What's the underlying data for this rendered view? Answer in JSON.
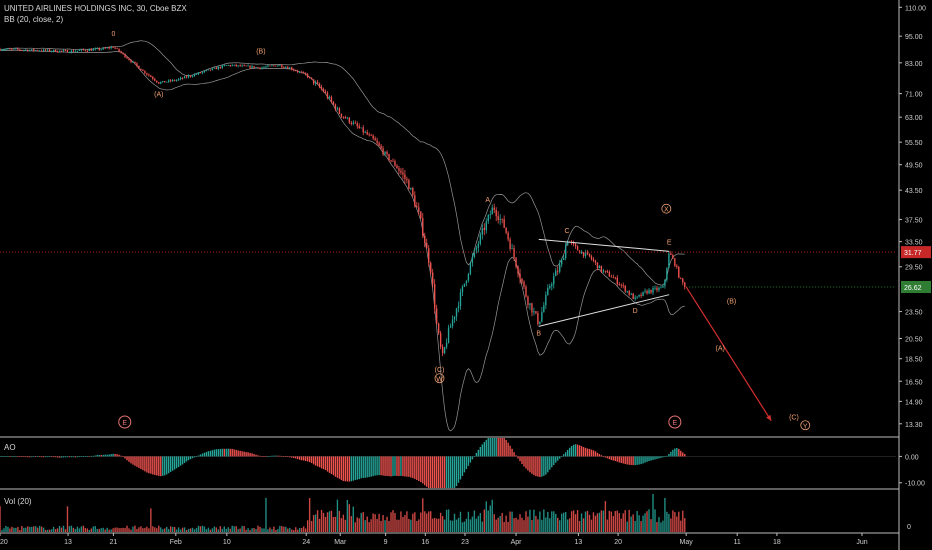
{
  "header": {
    "symbol_line": "UNITED AIRLINES HOLDINGS INC, 30, Cboe BZX",
    "indicator_line": "BB (20, close, 2)"
  },
  "panes": {
    "ao_label": "AO",
    "vol_label": "Vol (20)"
  },
  "price_badges": {
    "red_line": "31.77",
    "last_price": "26.62"
  },
  "colors": {
    "background": "#000000",
    "up": "#26a69a",
    "down": "#ef5350",
    "label": "#f0a070",
    "line": "#c8c8c8",
    "projection": "#d32f2f",
    "last_badge": "#2e7d32",
    "red_badge": "#c62828"
  },
  "chart_data": [
    {
      "type": "line",
      "title": "UNITED AIRLINES HOLDINGS INC, 30, Cboe BZX",
      "y_scale": "log",
      "ylim": [
        12.5,
        113
      ],
      "y_ticks": [
        "110.00",
        "95.00",
        "83.00",
        "71.00",
        "63.00",
        "55.50",
        "49.50",
        "43.50",
        "37.50",
        "33.50",
        "29.50",
        "23.50",
        "20.50",
        "18.50",
        "16.50",
        "14.90",
        "13.30"
      ],
      "y_tick_values": [
        110,
        95,
        83,
        71,
        63,
        55.5,
        49.5,
        43.5,
        37.5,
        33.5,
        29.5,
        23.5,
        20.5,
        18.5,
        16.5,
        14.9,
        13.3
      ],
      "x_ticks": [
        "2020",
        "13",
        "21",
        "Feb",
        "10",
        "24",
        "Mar",
        "9",
        "16",
        "23",
        "Apr",
        "13",
        "20",
        "May",
        "11",
        "18",
        "Jun"
      ],
      "x_tick_days": [
        0,
        12,
        20,
        31,
        40,
        54,
        60,
        68,
        75,
        82,
        91,
        102,
        109,
        121,
        130,
        137,
        152
      ],
      "x_range_days": [
        0,
        158
      ],
      "price_path": [
        [
          0,
          89
        ],
        [
          6,
          88.5
        ],
        [
          12,
          88
        ],
        [
          18,
          89
        ],
        [
          20,
          90
        ],
        [
          22,
          86
        ],
        [
          25,
          80
        ],
        [
          28,
          75
        ],
        [
          31,
          76
        ],
        [
          34,
          78
        ],
        [
          37,
          80
        ],
        [
          40,
          82
        ],
        [
          43,
          81.5
        ],
        [
          46,
          81
        ],
        [
          49,
          82
        ],
        [
          51,
          81
        ],
        [
          54,
          78
        ],
        [
          57,
          72
        ],
        [
          60,
          64
        ],
        [
          63,
          60
        ],
        [
          66,
          56
        ],
        [
          68,
          52
        ],
        [
          70,
          49
        ],
        [
          72,
          45
        ],
        [
          74,
          38
        ],
        [
          76,
          29
        ],
        [
          77,
          22
        ],
        [
          78,
          18.5
        ],
        [
          79,
          21
        ],
        [
          81,
          25
        ],
        [
          83,
          30
        ],
        [
          85,
          35
        ],
        [
          87,
          40
        ],
        [
          89,
          36
        ],
        [
          91,
          30
        ],
        [
          93,
          25
        ],
        [
          95,
          22.2
        ],
        [
          97,
          27
        ],
        [
          99,
          30
        ],
        [
          100,
          33.9
        ],
        [
          102,
          32
        ],
        [
          104,
          31
        ],
        [
          106,
          29
        ],
        [
          108,
          28
        ],
        [
          110,
          26.5
        ],
        [
          112,
          25
        ],
        [
          114,
          26
        ],
        [
          117,
          26.5
        ],
        [
          118,
          31.7
        ],
        [
          119,
          30
        ],
        [
          120,
          27.5
        ],
        [
          121,
          26.62
        ]
      ],
      "bollinger": {
        "period": 20,
        "source": "close",
        "stddev": 2
      },
      "lines": {
        "red_dotted_level": 31.77,
        "last_price": 26.62
      },
      "triangle": {
        "upper": [
          [
            95,
            33.9
          ],
          [
            118,
            31.9
          ]
        ],
        "lower": [
          [
            95,
            21.8
          ],
          [
            118,
            25.6
          ]
        ]
      },
      "projection": [
        [
          121,
          26.62
        ],
        [
          136,
          13.5
        ]
      ],
      "wave_labels": [
        {
          "text": "0",
          "day": 20,
          "price": 95,
          "circled": false
        },
        {
          "text": "(A)",
          "day": 28,
          "price": 70,
          "circled": false
        },
        {
          "text": "(B)",
          "day": 46,
          "price": 87,
          "circled": false
        },
        {
          "text": "(C)",
          "day": 77.5,
          "price": 17.3,
          "circled": false
        },
        {
          "text": "W",
          "day": 77.5,
          "price": 16.5,
          "circled": true
        },
        {
          "text": "A",
          "day": 86,
          "price": 41,
          "circled": false
        },
        {
          "text": "B",
          "day": 95,
          "price": 20.8,
          "circled": false
        },
        {
          "text": "C",
          "day": 100,
          "price": 35,
          "circled": false
        },
        {
          "text": "D",
          "day": 112,
          "price": 23.3,
          "circled": false
        },
        {
          "text": "E",
          "day": 118,
          "price": 33,
          "circled": false
        },
        {
          "text": "X",
          "day": 117.5,
          "price": 39,
          "circled": true
        },
        {
          "text": "(B)",
          "day": 129,
          "price": 24.5,
          "circled": false
        },
        {
          "text": "(A)",
          "day": 127,
          "price": 19.3,
          "circled": false
        },
        {
          "text": "(C)",
          "day": 140,
          "price": 13.6,
          "circled": false
        },
        {
          "text": "Y",
          "day": 142,
          "price": 13.0,
          "circled": true
        }
      ],
      "event_markers": [
        {
          "text": "E",
          "day": 22
        },
        {
          "text": "E",
          "day": 119
        }
      ]
    },
    {
      "type": "bar",
      "title": "AO",
      "y_ticks": [
        "0.00",
        "-10.00"
      ],
      "y_tick_values": [
        0,
        -10
      ],
      "ylim": [
        -12,
        7
      ]
    },
    {
      "type": "bar",
      "title": "Vol (20)",
      "y_ticks": [
        "0"
      ],
      "y_tick_values": [
        0
      ]
    }
  ]
}
